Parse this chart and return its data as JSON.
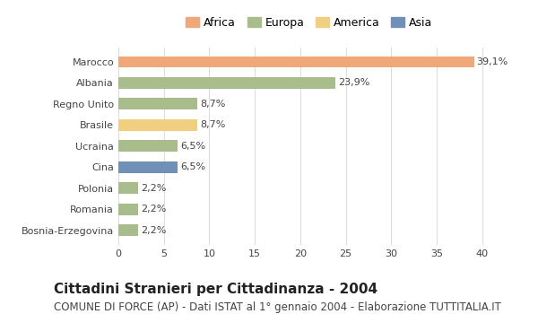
{
  "categories": [
    "Marocco",
    "Albania",
    "Regno Unito",
    "Brasile",
    "Ucraina",
    "Cina",
    "Polonia",
    "Romania",
    "Bosnia-Erzegovina"
  ],
  "values": [
    39.1,
    23.9,
    8.7,
    8.7,
    6.5,
    6.5,
    2.2,
    2.2,
    2.2
  ],
  "labels": [
    "39,1%",
    "23,9%",
    "8,7%",
    "8,7%",
    "6,5%",
    "6,5%",
    "2,2%",
    "2,2%",
    "2,2%"
  ],
  "colors": [
    "#F0A878",
    "#A8BC8C",
    "#A8BC8C",
    "#F0D080",
    "#A8BC8C",
    "#7090B8",
    "#A8BC8C",
    "#A8BC8C",
    "#A8BC8C"
  ],
  "continents": [
    "Africa",
    "Europa",
    "Europa",
    "America",
    "Europa",
    "Asia",
    "Europa",
    "Europa",
    "Europa"
  ],
  "legend_labels": [
    "Africa",
    "Europa",
    "America",
    "Asia"
  ],
  "legend_colors": [
    "#F0A878",
    "#A8BC8C",
    "#F0D080",
    "#7090B8"
  ],
  "xlim": [
    0,
    42
  ],
  "xticks": [
    0,
    5,
    10,
    15,
    20,
    25,
    30,
    35,
    40
  ],
  "title": "Cittadini Stranieri per Cittadinanza - 2004",
  "subtitle": "COMUNE DI FORCE (AP) - Dati ISTAT al 1° gennaio 2004 - Elaborazione TUTTITALIA.IT",
  "title_fontsize": 11,
  "subtitle_fontsize": 8.5,
  "label_fontsize": 8,
  "tick_fontsize": 8,
  "legend_fontsize": 9,
  "background_color": "#ffffff",
  "grid_color": "#dddddd",
  "bar_height": 0.55
}
